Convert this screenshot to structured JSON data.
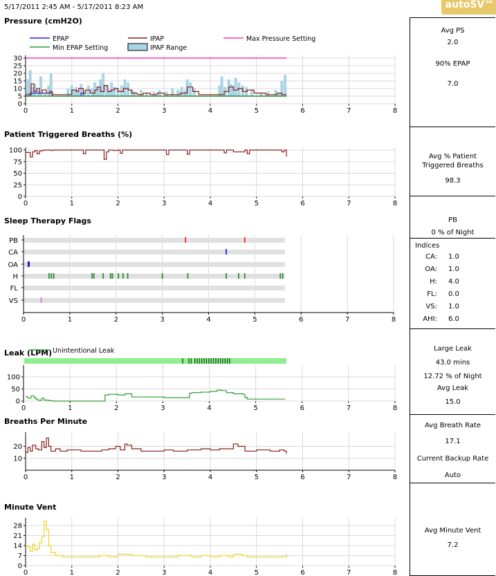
{
  "header": {
    "date_range": "5/17/2011 2:45 AM - 5/17/2011 8:23 AM",
    "badge": "autoSV™"
  },
  "colors": {
    "epap": "#2020e0",
    "ipap": "#8b1a1a",
    "max": "#ff33cc",
    "min": "#2e9d2e",
    "ipap_range": "#a8d4e6",
    "trig": "#8b1a1a",
    "leak": "#2e9d2e",
    "leak_bar": "#90ee90",
    "bpm": "#8b1a1a",
    "vent": "#f0d020",
    "flag_pb": "#ff2020",
    "flag_ca": "#2020e0",
    "flag_oa": "#2020e0",
    "flag_h": "#2e8b2e",
    "flag_vs": "#ff66cc"
  },
  "chart_data": [
    {
      "type": "line",
      "title": "Pressure (cmH2O)",
      "x_range": [
        0,
        8
      ],
      "ylim": [
        0,
        30
      ],
      "yticks": [
        "0",
        "5",
        "10",
        "15",
        "20",
        "25",
        "30"
      ],
      "xticks": [
        "0",
        "1",
        "2",
        "3",
        "4",
        "5",
        "6",
        "7",
        "8"
      ],
      "legend": [
        "EPAP",
        "IPAP",
        "Max Pressure Setting",
        "Min EPAP Setting",
        "IPAP Range"
      ],
      "max_pressure": 30,
      "min_epap": 5,
      "epap": {
        "x": [
          0,
          0.08,
          0.1,
          0.55,
          0.58,
          0.9,
          1.2,
          1.25,
          1.4,
          5.65
        ],
        "y": [
          5,
          5,
          7,
          7,
          5,
          5,
          7,
          5,
          5,
          5
        ]
      },
      "ipap_range": {
        "x": [
          0.05,
          0.1,
          0.15,
          0.2,
          0.28,
          0.33,
          0.42,
          0.5,
          0.55,
          0.92,
          1.0,
          1.05,
          1.1,
          1.15,
          1.2,
          1.28,
          1.36,
          1.45,
          1.5,
          1.56,
          1.62,
          1.68,
          1.75,
          1.8,
          1.86,
          1.92,
          2.0,
          2.08,
          2.15,
          2.22,
          2.3,
          2.36,
          2.5,
          2.62,
          2.78,
          2.9,
          3.05,
          3.18,
          3.3,
          3.38,
          3.45,
          3.5,
          3.57,
          3.65,
          4.2,
          4.25,
          4.32,
          4.4,
          4.45,
          4.5,
          4.55,
          4.62,
          4.7,
          4.78,
          4.9,
          5.1,
          5.25,
          5.42,
          5.5,
          5.55,
          5.62
        ],
        "y": [
          16,
          22,
          11,
          13,
          9,
          18,
          7,
          12,
          20,
          10,
          12,
          9,
          11,
          8,
          13,
          9,
          12,
          10,
          14,
          11,
          16,
          20,
          12,
          9,
          14,
          11,
          10,
          12,
          16,
          14,
          9,
          8,
          9,
          7,
          8,
          9,
          8,
          10,
          9,
          11,
          9,
          16,
          14,
          10,
          12,
          18,
          11,
          16,
          13,
          12,
          17,
          14,
          12,
          11,
          9,
          7,
          8,
          9,
          7,
          15,
          19
        ]
      },
      "ipap": {
        "x": [
          0,
          0.08,
          0.12,
          0.18,
          0.24,
          0.3,
          0.36,
          0.45,
          0.52,
          0.58,
          0.9,
          1.0,
          1.1,
          1.15,
          1.25,
          1.3,
          1.4,
          1.5,
          1.55,
          1.62,
          1.7,
          1.78,
          1.85,
          1.92,
          2.0,
          2.12,
          2.22,
          2.3,
          2.42,
          2.55,
          2.7,
          2.85,
          3.0,
          3.2,
          3.35,
          3.5,
          3.62,
          3.75,
          4.2,
          4.3,
          4.4,
          4.5,
          4.6,
          4.7,
          4.8,
          4.95,
          5.2,
          5.35,
          5.45,
          5.55,
          5.65
        ],
        "y": [
          6,
          6,
          13,
          8,
          10,
          7,
          9,
          7,
          8,
          6,
          6,
          9,
          8,
          10,
          7,
          9,
          7,
          9,
          11,
          8,
          12,
          8,
          9,
          10,
          8,
          10,
          9,
          7,
          6,
          7,
          6,
          7,
          6,
          6,
          7,
          11,
          8,
          6,
          6,
          8,
          11,
          9,
          10,
          8,
          9,
          7,
          6,
          6,
          7,
          6,
          6
        ]
      }
    },
    {
      "type": "line",
      "title": "Patient Triggered Breaths (%)",
      "x_range": [
        0,
        8
      ],
      "ylim": [
        0,
        100
      ],
      "yticks": [
        "0",
        "25",
        "50",
        "75",
        "100"
      ],
      "xticks": [
        "0",
        "1",
        "2",
        "3",
        "4",
        "5",
        "6",
        "7",
        "8"
      ],
      "series": {
        "x": [
          0,
          0.08,
          0.1,
          0.15,
          0.2,
          0.25,
          0.3,
          0.35,
          0.4,
          0.55,
          0.6,
          1.2,
          1.25,
          1.3,
          1.65,
          1.7,
          1.75,
          1.8,
          1.9,
          2.0,
          2.05,
          2.1,
          2.5,
          3.0,
          3.05,
          3.1,
          3.45,
          3.5,
          3.55,
          4.25,
          4.3,
          4.35,
          4.45,
          4.5,
          4.75,
          4.8,
          4.85,
          5.5,
          5.55,
          5.6,
          5.65
        ],
        "y": [
          95,
          95,
          85,
          96,
          99,
          92,
          98,
          99,
          100,
          99,
          100,
          100,
          92,
          100,
          100,
          80,
          96,
          100,
          99,
          100,
          93,
          100,
          100,
          100,
          90,
          100,
          100,
          91,
          100,
          100,
          94,
          100,
          100,
          96,
          100,
          92,
          100,
          100,
          96,
          100,
          86
        ]
      }
    },
    {
      "type": "event",
      "title": "Sleep Therapy Flags",
      "x_range": [
        0,
        8
      ],
      "xticks": [
        "0",
        "1",
        "2",
        "3",
        "4",
        "5",
        "6",
        "7",
        "8"
      ],
      "rows": [
        {
          "label": "PB",
          "times": [
            3.5,
            4.78
          ]
        },
        {
          "label": "CA",
          "times": [
            4.38
          ]
        },
        {
          "label": "OA",
          "times": [
            0.1,
            0.12
          ]
        },
        {
          "label": "H",
          "times": [
            0.55,
            0.6,
            0.65,
            1.48,
            1.52,
            1.72,
            1.88,
            1.92,
            2.05,
            2.15,
            2.25,
            3.0,
            3.55,
            4.38,
            4.65,
            4.78,
            5.55,
            5.6
          ]
        },
        {
          "label": "FL",
          "times": []
        },
        {
          "label": "VS",
          "times": [
            0.38
          ]
        }
      ]
    },
    {
      "type": "line",
      "title": "Leak (LPM)",
      "x_range": [
        0,
        8
      ],
      "ylim": [
        0,
        150
      ],
      "yticks": [
        "0",
        "50",
        "100"
      ],
      "xticks": [
        "0",
        "1",
        "2",
        "3",
        "4",
        "5",
        "6",
        "7",
        "8"
      ],
      "legend": [
        "Unintentional Leak"
      ],
      "large_leak_spans": [
        [
          3.42,
          3.44
        ],
        [
          3.55,
          3.6
        ],
        [
          3.68,
          4.45
        ]
      ],
      "series": {
        "x": [
          0,
          0.05,
          0.12,
          0.18,
          0.22,
          0.27,
          0.35,
          0.4,
          0.5,
          0.58,
          1.65,
          1.72,
          1.8,
          2.0,
          2.15,
          2.3,
          3.0,
          3.5,
          3.55,
          3.6,
          3.8,
          4.0,
          4.15,
          4.25,
          4.35,
          4.5,
          4.7,
          4.75,
          4.8,
          5.62
        ],
        "y": [
          18,
          12,
          22,
          15,
          8,
          3,
          12,
          4,
          2,
          0,
          0,
          25,
          28,
          25,
          30,
          17,
          14,
          14,
          32,
          35,
          37,
          40,
          45,
          43,
          35,
          30,
          28,
          15,
          8,
          8
        ]
      }
    },
    {
      "type": "line",
      "title": "Breaths Per Minute",
      "x_range": [
        0,
        8
      ],
      "ylim": [
        0,
        30
      ],
      "yticks": [
        "10",
        "20"
      ],
      "xticks": [
        "0",
        "1",
        "2",
        "3",
        "4",
        "5",
        "6",
        "7",
        "8"
      ],
      "series": {
        "x": [
          0,
          0.05,
          0.1,
          0.15,
          0.22,
          0.28,
          0.35,
          0.4,
          0.45,
          0.5,
          0.55,
          0.65,
          0.75,
          0.9,
          1.2,
          1.5,
          1.65,
          1.8,
          1.95,
          2.05,
          2.15,
          2.2,
          2.3,
          2.5,
          2.8,
          3.0,
          3.2,
          3.5,
          3.8,
          4.0,
          4.2,
          4.4,
          4.5,
          4.6,
          4.75,
          5.0,
          5.3,
          5.5,
          5.6,
          5.65
        ],
        "y": [
          15,
          19,
          16,
          21,
          18,
          17,
          24,
          19,
          27,
          20,
          16,
          18,
          16,
          17,
          16,
          16,
          17,
          18,
          20,
          17,
          22,
          21,
          18,
          16,
          16,
          17,
          16,
          17,
          18,
          17,
          18,
          18,
          22,
          20,
          16,
          17,
          16,
          17,
          16,
          14
        ]
      }
    },
    {
      "type": "line",
      "title": "Minute Vent",
      "x_range": [
        0,
        8
      ],
      "ylim": [
        0,
        35
      ],
      "yticks": [
        "0",
        "7",
        "14",
        "21",
        "28"
      ],
      "xticks": [
        "0",
        "1",
        "2",
        "3",
        "4",
        "5",
        "6",
        "7",
        "8"
      ],
      "series": {
        "x": [
          0,
          0.05,
          0.1,
          0.15,
          0.2,
          0.25,
          0.3,
          0.35,
          0.4,
          0.45,
          0.5,
          0.55,
          0.65,
          0.8,
          1.2,
          1.6,
          1.8,
          2.0,
          2.3,
          2.6,
          3.0,
          3.3,
          3.6,
          3.8,
          4.0,
          4.2,
          4.4,
          4.5,
          4.7,
          4.8,
          5.2,
          5.5,
          5.65
        ],
        "y": [
          14,
          13,
          10,
          15,
          11,
          12,
          16,
          20,
          31,
          25,
          14,
          9,
          7,
          6,
          6,
          7,
          6,
          8,
          7,
          6,
          6,
          7,
          6,
          7,
          6,
          7,
          6,
          8,
          7,
          6,
          6,
          6,
          8
        ]
      }
    }
  ],
  "stats": {
    "pressure": {
      "avg_ps_label": "Avg PS",
      "avg_ps": "2.0",
      "epap90_label": "90% EPAP",
      "epap90": "7.0"
    },
    "triggered": {
      "label_1": "Avg % Patient",
      "label_2": "Triggered Breaths",
      "value": "98.3"
    },
    "pb": {
      "label": "PB",
      "value": "0 % of Night"
    },
    "indices": {
      "title": "Indices",
      "rows": [
        {
          "key": "CA:",
          "value": "1.0"
        },
        {
          "key": "OA:",
          "value": "1.0"
        },
        {
          "key": "H:",
          "value": "4.0"
        },
        {
          "key": "FL:",
          "value": "0.0"
        },
        {
          "key": "VS:",
          "value": "1.0"
        },
        {
          "key": "AHI:",
          "value": "6.0"
        }
      ]
    },
    "leak": {
      "label": "Large Leak",
      "mins": "43.0 mins",
      "pct": "12.72 % of Night",
      "avg_label": "Avg Leak",
      "avg": "15.0"
    },
    "breath_rate": {
      "label": "Avg Breath Rate",
      "value": "17.1",
      "backup_label": "Current Backup Rate",
      "backup_value": "Auto"
    },
    "minute_vent": {
      "label": "Avg Minute Vent",
      "value": "7.2"
    }
  }
}
